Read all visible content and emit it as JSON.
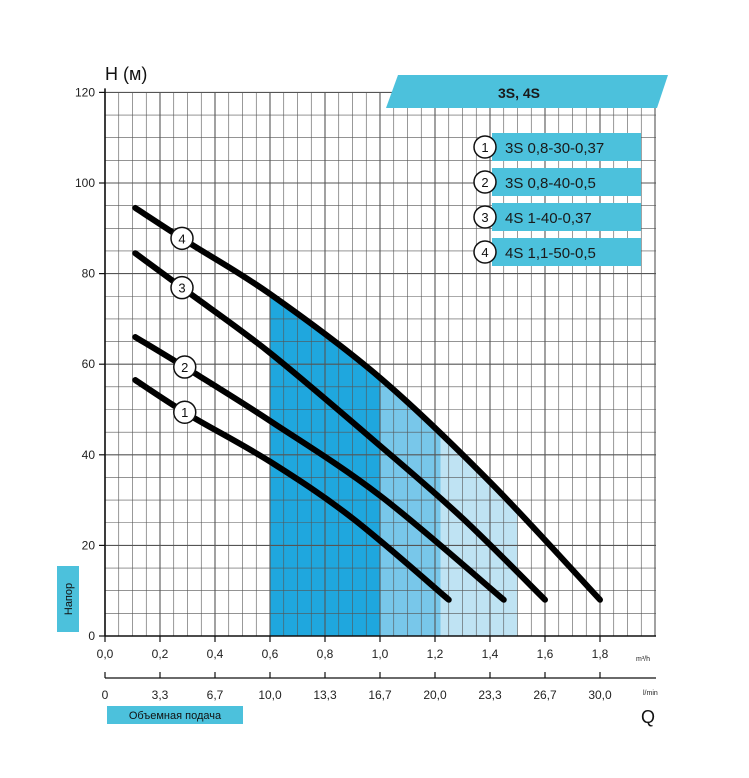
{
  "chart_data": {
    "type": "line",
    "title": "3S, 4S",
    "ylabel": "H (м)",
    "y_side_label": "Напор",
    "xlabel": "Объемная подача",
    "x_symbol": "Q",
    "x_unit_primary": "m³/h",
    "x_unit_secondary": "l/min",
    "ylim": [
      0,
      120
    ],
    "xlim": [
      0,
      2.0
    ],
    "y_ticks": [
      "0",
      "20",
      "40",
      "60",
      "80",
      "100",
      "120"
    ],
    "x_ticks_primary": [
      "0,0",
      "0,2",
      "0,4",
      "0,6",
      "0,8",
      "1,0",
      "1,2",
      "1,4",
      "1,6",
      "1,8"
    ],
    "x_ticks_secondary": [
      "0",
      "3,3",
      "6,7",
      "10,0",
      "13,3",
      "16,7",
      "20,0",
      "23,3",
      "26,7",
      "30,0"
    ],
    "grid": true,
    "legend_position": "top-right",
    "series": [
      {
        "marker": "1",
        "name": "3S 0,8-30-0,37",
        "points": [
          [
            0.11,
            56.5
          ],
          [
            0.3,
            49
          ],
          [
            0.6,
            38.5
          ],
          [
            0.9,
            26
          ],
          [
            1.25,
            8
          ]
        ]
      },
      {
        "marker": "2",
        "name": "3S 0,8-40-0,5",
        "points": [
          [
            0.11,
            66
          ],
          [
            0.3,
            59
          ],
          [
            0.6,
            47.5
          ],
          [
            1.0,
            31
          ],
          [
            1.45,
            8
          ]
        ]
      },
      {
        "marker": "3",
        "name": "4S 1-40-0,37",
        "points": [
          [
            0.11,
            84.5
          ],
          [
            0.3,
            76
          ],
          [
            0.6,
            62.5
          ],
          [
            1.0,
            42
          ],
          [
            1.3,
            26
          ],
          [
            1.6,
            8
          ]
        ]
      },
      {
        "marker": "4",
        "name": "4S 1,1-50-0,5",
        "points": [
          [
            0.11,
            94.5
          ],
          [
            0.3,
            87
          ],
          [
            0.6,
            75.5
          ],
          [
            1.0,
            57
          ],
          [
            1.4,
            34
          ],
          [
            1.8,
            8
          ]
        ]
      }
    ],
    "operating_zones": [
      {
        "name": "outer",
        "x_range": [
          0.6,
          1.5
        ],
        "color": "#bfe3f3"
      },
      {
        "name": "middle",
        "x_range": [
          0.6,
          1.22
        ],
        "color": "#78c7ea"
      },
      {
        "name": "inner",
        "x_range": [
          0.6,
          1.0
        ],
        "color": "#1fa7de"
      }
    ]
  },
  "colors": {
    "accent": "#4cc1dc",
    "grid": "#555555",
    "curve": "#000000"
  }
}
